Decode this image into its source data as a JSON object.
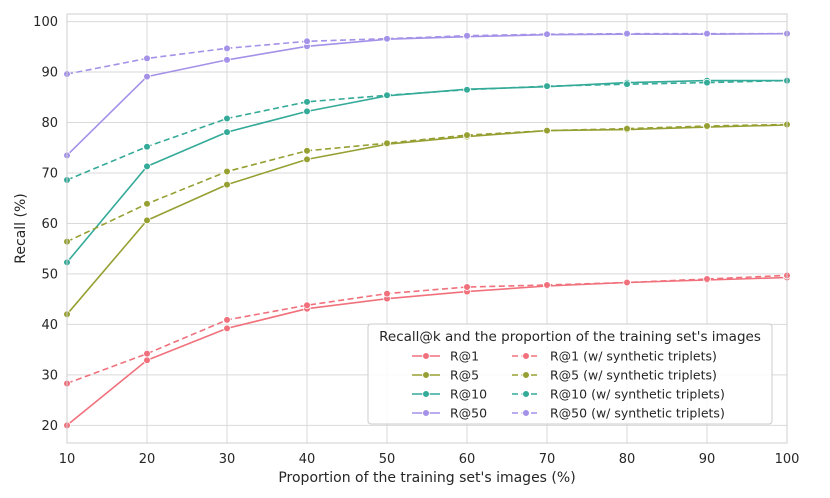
{
  "chart_data": {
    "type": "line",
    "xlabel": "Proportion of the training set's images (%)",
    "ylabel": "Recall (%)",
    "xlim": [
      10,
      100
    ],
    "ylim": [
      16.5,
      101.5
    ],
    "xticks": [
      10,
      20,
      30,
      40,
      50,
      60,
      70,
      80,
      90,
      100
    ],
    "yticks": [
      20,
      30,
      40,
      50,
      60,
      70,
      80,
      90,
      100
    ],
    "grid": true,
    "legend": {
      "title": "Recall@k and the proportion of the training set's images",
      "position": "lower-right",
      "columns": 2
    },
    "x": [
      10,
      20,
      30,
      40,
      50,
      60,
      70,
      80,
      90,
      100
    ],
    "series": [
      {
        "name": "R@1",
        "color": "#f0717c",
        "dash": "solid",
        "values": [
          20.0,
          32.9,
          39.2,
          43.1,
          45.1,
          46.5,
          47.6,
          48.3,
          48.8,
          49.3
        ]
      },
      {
        "name": "R@5",
        "color": "#96a032",
        "dash": "solid",
        "values": [
          42.0,
          60.6,
          67.7,
          72.7,
          75.7,
          77.2,
          78.4,
          78.6,
          79.1,
          79.5
        ]
      },
      {
        "name": "R@10",
        "color": "#34aa98",
        "dash": "solid",
        "values": [
          52.3,
          71.3,
          78.1,
          82.2,
          85.3,
          86.6,
          87.1,
          87.9,
          88.3,
          88.3
        ]
      },
      {
        "name": "R@50",
        "color": "#a491e8",
        "dash": "solid",
        "values": [
          73.5,
          89.1,
          92.4,
          95.1,
          96.5,
          97.0,
          97.4,
          97.5,
          97.5,
          97.6
        ]
      },
      {
        "name": "R@1 (w/ synthetic triplets)",
        "color": "#f0717c",
        "dash": "dashed",
        "values": [
          28.3,
          34.2,
          40.9,
          43.8,
          46.1,
          47.4,
          47.8,
          48.3,
          49.0,
          49.7
        ]
      },
      {
        "name": "R@5 (w/ synthetic triplets)",
        "color": "#96a032",
        "dash": "dashed",
        "values": [
          56.4,
          63.9,
          70.3,
          74.4,
          75.9,
          77.5,
          78.4,
          78.8,
          79.3,
          79.6
        ]
      },
      {
        "name": "R@10 (w/ synthetic triplets)",
        "color": "#34aa98",
        "dash": "dashed",
        "values": [
          68.6,
          75.2,
          80.8,
          84.1,
          85.4,
          86.5,
          87.2,
          87.6,
          87.9,
          88.3
        ]
      },
      {
        "name": "R@50 (w/ synthetic triplets)",
        "color": "#a491e8",
        "dash": "dashed",
        "values": [
          89.6,
          92.7,
          94.7,
          96.1,
          96.6,
          97.2,
          97.5,
          97.6,
          97.6,
          97.6
        ]
      }
    ]
  }
}
